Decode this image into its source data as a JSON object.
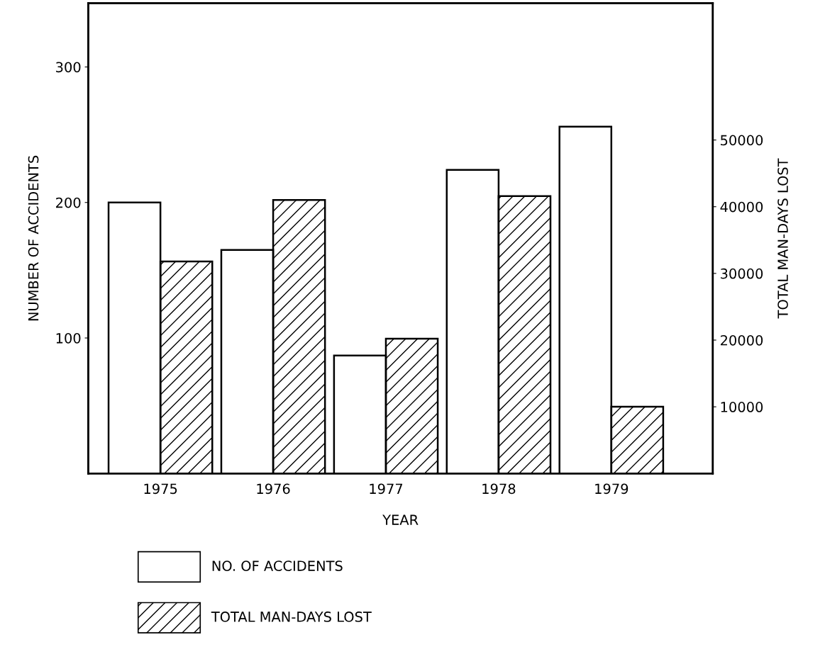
{
  "chart_data": {
    "type": "bar",
    "xlabel": "YEAR",
    "ylabel": "NUMBER OF ACCIDENTS",
    "y2label": "TOTAL MAN-DAYS LOST",
    "categories": [
      "1975",
      "1976",
      "1977",
      "1978",
      "1979"
    ],
    "series": [
      {
        "name": "NO. OF ACCIDENTS",
        "color": "#ffffff",
        "values": [
          200,
          165,
          87,
          224,
          256
        ]
      },
      {
        "name": "TOTAL MAN-DAYS LOST",
        "color": "#000000",
        "values": [
          31800,
          41000,
          20200,
          41600,
          10000
        ],
        "axis": "y2"
      }
    ],
    "ylim": [
      0,
      347
    ],
    "yticks": [
      100,
      200,
      300
    ],
    "y2lim": [
      0,
      70500
    ],
    "y2ticks": [
      10000,
      20000,
      30000,
      40000,
      50000
    ],
    "grid": false,
    "legend": "bottom"
  }
}
